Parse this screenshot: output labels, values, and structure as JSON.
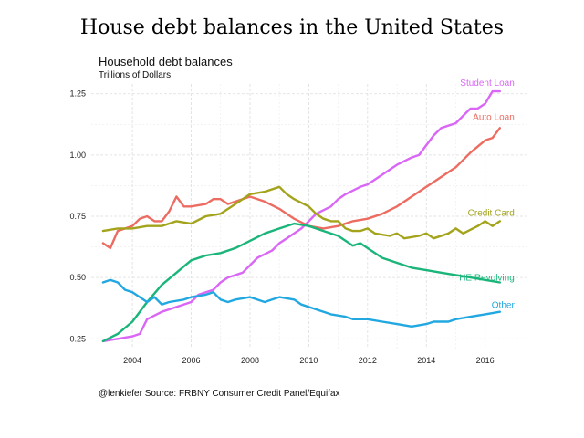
{
  "page": {
    "title": "House debt balances in the United States"
  },
  "chart_data": {
    "type": "line",
    "title": "Household debt balances",
    "subtitle": "Trillions of Dollars",
    "caption": "@lenkiefer Source: FRBNY Consumer Credit Panel/Equifax",
    "xlabel": "",
    "ylabel": "",
    "xlim": [
      2002.6,
      2017.5
    ],
    "ylim": [
      0.21,
      1.29
    ],
    "x_ticks": [
      2004,
      2006,
      2008,
      2010,
      2012,
      2014,
      2016
    ],
    "y_ticks": [
      0.25,
      0.5,
      0.75,
      1.0,
      1.25
    ],
    "y_tick_labels": [
      "0.25",
      "0.50",
      "0.75",
      "1.00",
      "1.25"
    ],
    "grid": true,
    "legend": "labels at line ends",
    "series": [
      {
        "name": "Student Loan",
        "color": "#d966f5",
        "points": [
          [
            2003.0,
            0.24
          ],
          [
            2003.5,
            0.25
          ],
          [
            2004.0,
            0.26
          ],
          [
            2004.25,
            0.27
          ],
          [
            2004.5,
            0.33
          ],
          [
            2005.0,
            0.36
          ],
          [
            2005.5,
            0.38
          ],
          [
            2006.0,
            0.4
          ],
          [
            2006.25,
            0.43
          ],
          [
            2006.75,
            0.45
          ],
          [
            2007.0,
            0.48
          ],
          [
            2007.25,
            0.5
          ],
          [
            2007.75,
            0.52
          ],
          [
            2008.0,
            0.55
          ],
          [
            2008.25,
            0.58
          ],
          [
            2008.75,
            0.61
          ],
          [
            2009.0,
            0.64
          ],
          [
            2009.25,
            0.66
          ],
          [
            2009.75,
            0.7
          ],
          [
            2010.0,
            0.73
          ],
          [
            2010.25,
            0.76
          ],
          [
            2010.75,
            0.79
          ],
          [
            2011.0,
            0.82
          ],
          [
            2011.25,
            0.84
          ],
          [
            2011.75,
            0.87
          ],
          [
            2012.0,
            0.88
          ],
          [
            2012.25,
            0.9
          ],
          [
            2012.75,
            0.94
          ],
          [
            2013.0,
            0.96
          ],
          [
            2013.5,
            0.99
          ],
          [
            2013.75,
            1.0
          ],
          [
            2014.0,
            1.04
          ],
          [
            2014.25,
            1.08
          ],
          [
            2014.5,
            1.11
          ],
          [
            2015.0,
            1.13
          ],
          [
            2015.25,
            1.16
          ],
          [
            2015.5,
            1.19
          ],
          [
            2015.75,
            1.19
          ],
          [
            2016.0,
            1.21
          ],
          [
            2016.25,
            1.26
          ],
          [
            2016.5,
            1.26
          ]
        ]
      },
      {
        "name": "Auto Loan",
        "color": "#ec6c62",
        "points": [
          [
            2003.0,
            0.64
          ],
          [
            2003.25,
            0.62
          ],
          [
            2003.5,
            0.69
          ],
          [
            2004.0,
            0.71
          ],
          [
            2004.25,
            0.74
          ],
          [
            2004.5,
            0.75
          ],
          [
            2004.75,
            0.73
          ],
          [
            2005.0,
            0.73
          ],
          [
            2005.25,
            0.77
          ],
          [
            2005.5,
            0.83
          ],
          [
            2005.75,
            0.79
          ],
          [
            2006.0,
            0.79
          ],
          [
            2006.5,
            0.8
          ],
          [
            2006.75,
            0.82
          ],
          [
            2007.0,
            0.82
          ],
          [
            2007.25,
            0.8
          ],
          [
            2007.5,
            0.81
          ],
          [
            2007.75,
            0.82
          ],
          [
            2008.0,
            0.83
          ],
          [
            2008.5,
            0.81
          ],
          [
            2009.0,
            0.78
          ],
          [
            2009.5,
            0.74
          ],
          [
            2010.0,
            0.71
          ],
          [
            2010.5,
            0.7
          ],
          [
            2011.0,
            0.71
          ],
          [
            2011.5,
            0.73
          ],
          [
            2012.0,
            0.74
          ],
          [
            2012.5,
            0.76
          ],
          [
            2013.0,
            0.79
          ],
          [
            2013.5,
            0.83
          ],
          [
            2014.0,
            0.87
          ],
          [
            2014.5,
            0.91
          ],
          [
            2015.0,
            0.95
          ],
          [
            2015.5,
            1.01
          ],
          [
            2016.0,
            1.06
          ],
          [
            2016.25,
            1.07
          ],
          [
            2016.5,
            1.11
          ]
        ]
      },
      {
        "name": "Credit Card",
        "color": "#a3a41c",
        "points": [
          [
            2003.0,
            0.69
          ],
          [
            2003.5,
            0.7
          ],
          [
            2004.0,
            0.7
          ],
          [
            2004.5,
            0.71
          ],
          [
            2005.0,
            0.71
          ],
          [
            2005.5,
            0.73
          ],
          [
            2006.0,
            0.72
          ],
          [
            2006.5,
            0.75
          ],
          [
            2007.0,
            0.76
          ],
          [
            2007.5,
            0.8
          ],
          [
            2008.0,
            0.84
          ],
          [
            2008.5,
            0.85
          ],
          [
            2009.0,
            0.87
          ],
          [
            2009.25,
            0.84
          ],
          [
            2009.5,
            0.82
          ],
          [
            2010.0,
            0.79
          ],
          [
            2010.25,
            0.76
          ],
          [
            2010.5,
            0.74
          ],
          [
            2010.75,
            0.73
          ],
          [
            2011.0,
            0.73
          ],
          [
            2011.25,
            0.7
          ],
          [
            2011.5,
            0.69
          ],
          [
            2011.75,
            0.69
          ],
          [
            2012.0,
            0.7
          ],
          [
            2012.25,
            0.68
          ],
          [
            2012.75,
            0.67
          ],
          [
            2013.0,
            0.68
          ],
          [
            2013.25,
            0.66
          ],
          [
            2013.75,
            0.67
          ],
          [
            2014.0,
            0.68
          ],
          [
            2014.25,
            0.66
          ],
          [
            2014.75,
            0.68
          ],
          [
            2015.0,
            0.7
          ],
          [
            2015.25,
            0.68
          ],
          [
            2015.75,
            0.71
          ],
          [
            2016.0,
            0.73
          ],
          [
            2016.25,
            0.71
          ],
          [
            2016.5,
            0.73
          ]
        ]
      },
      {
        "name": "HE Revolving",
        "color": "#1ab57a",
        "points": [
          [
            2003.0,
            0.24
          ],
          [
            2003.5,
            0.27
          ],
          [
            2004.0,
            0.32
          ],
          [
            2004.5,
            0.4
          ],
          [
            2005.0,
            0.47
          ],
          [
            2005.5,
            0.52
          ],
          [
            2006.0,
            0.57
          ],
          [
            2006.5,
            0.59
          ],
          [
            2007.0,
            0.6
          ],
          [
            2007.5,
            0.62
          ],
          [
            2008.0,
            0.65
          ],
          [
            2008.5,
            0.68
          ],
          [
            2009.0,
            0.7
          ],
          [
            2009.5,
            0.72
          ],
          [
            2010.0,
            0.71
          ],
          [
            2010.5,
            0.69
          ],
          [
            2011.0,
            0.67
          ],
          [
            2011.5,
            0.63
          ],
          [
            2011.75,
            0.64
          ],
          [
            2012.0,
            0.62
          ],
          [
            2012.5,
            0.58
          ],
          [
            2013.0,
            0.56
          ],
          [
            2013.5,
            0.54
          ],
          [
            2014.0,
            0.53
          ],
          [
            2014.5,
            0.52
          ],
          [
            2015.0,
            0.51
          ],
          [
            2015.5,
            0.5
          ],
          [
            2016.0,
            0.49
          ],
          [
            2016.5,
            0.48
          ]
        ]
      },
      {
        "name": "Other",
        "color": "#22a8e0",
        "points": [
          [
            2003.0,
            0.48
          ],
          [
            2003.25,
            0.49
          ],
          [
            2003.5,
            0.48
          ],
          [
            2003.75,
            0.45
          ],
          [
            2004.0,
            0.44
          ],
          [
            2004.25,
            0.42
          ],
          [
            2004.5,
            0.4
          ],
          [
            2004.75,
            0.42
          ],
          [
            2005.0,
            0.39
          ],
          [
            2005.25,
            0.4
          ],
          [
            2005.75,
            0.41
          ],
          [
            2006.0,
            0.42
          ],
          [
            2006.5,
            0.43
          ],
          [
            2006.75,
            0.44
          ],
          [
            2007.0,
            0.41
          ],
          [
            2007.25,
            0.4
          ],
          [
            2007.5,
            0.41
          ],
          [
            2008.0,
            0.42
          ],
          [
            2008.5,
            0.4
          ],
          [
            2008.75,
            0.41
          ],
          [
            2009.0,
            0.42
          ],
          [
            2009.5,
            0.41
          ],
          [
            2009.75,
            0.39
          ],
          [
            2010.25,
            0.37
          ],
          [
            2010.75,
            0.35
          ],
          [
            2011.25,
            0.34
          ],
          [
            2011.5,
            0.33
          ],
          [
            2012.0,
            0.33
          ],
          [
            2012.5,
            0.32
          ],
          [
            2013.0,
            0.31
          ],
          [
            2013.5,
            0.3
          ],
          [
            2014.0,
            0.31
          ],
          [
            2014.25,
            0.32
          ],
          [
            2014.75,
            0.32
          ],
          [
            2015.0,
            0.33
          ],
          [
            2015.5,
            0.34
          ],
          [
            2016.0,
            0.35
          ],
          [
            2016.5,
            0.36
          ]
        ]
      }
    ]
  }
}
